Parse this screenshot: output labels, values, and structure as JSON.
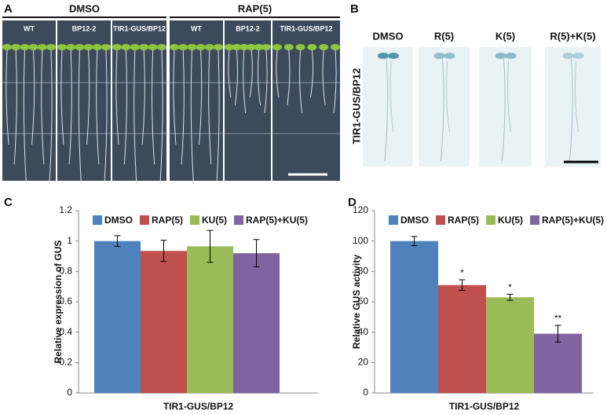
{
  "panel_a": {
    "letter": "A",
    "groups": [
      {
        "label": "DMSO",
        "lanes": [
          "WT",
          "BP12-2",
          "TIR1-GUS/BP12"
        ]
      },
      {
        "label": "RAP(5)",
        "lanes": [
          "WT",
          "BP12-2",
          "TIR1-GUS/BP12"
        ]
      }
    ]
  },
  "panel_b": {
    "letter": "B",
    "row_label": "TIR1-GUS/BP12",
    "columns": [
      "DMSO",
      "R(5)",
      "K(5)",
      "R(5)+K(5)"
    ]
  },
  "chart_data": [
    {
      "type": "bar",
      "letter": "C",
      "y_label": "Relative expression of GUS",
      "x_label": "TIR1-GUS/BP12",
      "ylim": [
        0,
        1.2
      ],
      "yticks": [
        0,
        0.2,
        0.4,
        0.6,
        0.8,
        1,
        1.2
      ],
      "series": [
        {
          "name": "DMSO",
          "color": "#4f81bd",
          "values": [
            1.0
          ],
          "errors": [
            0.035
          ]
        },
        {
          "name": "RAP(5)",
          "color": "#c0504d",
          "values": [
            0.935
          ],
          "errors": [
            0.07
          ]
        },
        {
          "name": "KU(5)",
          "color": "#9bbb59",
          "values": [
            0.965
          ],
          "errors": [
            0.105
          ]
        },
        {
          "name": "RAP(5)+KU(5)",
          "color": "#8064a2",
          "values": [
            0.92
          ],
          "errors": [
            0.09
          ]
        }
      ]
    },
    {
      "type": "bar",
      "letter": "D",
      "y_label": "Relative GUS activity",
      "x_label": "TIR1-GUS/BP12",
      "ylim": [
        0,
        120
      ],
      "yticks": [
        0,
        20,
        40,
        60,
        80,
        100,
        120
      ],
      "series": [
        {
          "name": "DMSO",
          "color": "#4f81bd",
          "values": [
            100
          ],
          "errors": [
            3
          ]
        },
        {
          "name": "RAP(5)",
          "color": "#c0504d",
          "values": [
            71
          ],
          "errors": [
            3.5
          ],
          "significance": [
            "*"
          ]
        },
        {
          "name": "KU(5)",
          "color": "#9bbb59",
          "values": [
            63
          ],
          "errors": [
            2
          ],
          "significance": [
            "*"
          ]
        },
        {
          "name": "RAP(5)+KU(5)",
          "color": "#8064a2",
          "values": [
            39
          ],
          "errors": [
            5.5
          ],
          "significance": [
            "**"
          ]
        }
      ]
    }
  ]
}
